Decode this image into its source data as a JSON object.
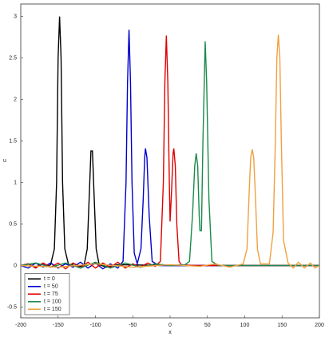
{
  "chart_data": {
    "type": "line",
    "xlabel": "x",
    "ylabel": "u",
    "xlim": [
      -200,
      200
    ],
    "ylim": [
      -0.63,
      3.15
    ],
    "xticks": [
      -200,
      -150,
      -100,
      -50,
      0,
      50,
      100,
      150,
      200
    ],
    "yticks": [
      -0.5,
      0,
      0.5,
      1,
      1.5,
      2,
      2.5,
      3
    ],
    "legend": "lower left",
    "series": [
      {
        "name": "t = 0",
        "color": "#000000",
        "x": [
          -200,
          -190,
          -180,
          -172,
          -165,
          -160,
          -155,
          -152,
          -150,
          -148,
          -146,
          -144,
          -141,
          -136,
          -128,
          -120,
          -115,
          -111,
          -108,
          -106,
          -104,
          -102,
          -99,
          -95,
          -85,
          -70,
          0,
          200
        ],
        "values": [
          0,
          0.02,
          -0.02,
          0.02,
          -0.01,
          0.01,
          0.2,
          1.0,
          2.5,
          3.0,
          2.5,
          1.0,
          0.2,
          0.01,
          0.02,
          -0.01,
          0.01,
          0.2,
          0.9,
          1.38,
          1.38,
          0.9,
          0.2,
          0.01,
          -0.02,
          0.01,
          0,
          0
        ]
      },
      {
        "name": "t = 50",
        "color": "#0000cc",
        "x": [
          -200,
          -190,
          -180,
          -170,
          -160,
          -150,
          -140,
          -130,
          -120,
          -110,
          -100,
          -90,
          -80,
          -70,
          -63,
          -59,
          -57,
          -55,
          -53,
          -51,
          -48,
          -44,
          -39,
          -36,
          -34,
          -33,
          -31,
          -28,
          -24,
          -15,
          0,
          200
        ],
        "values": [
          0,
          -0.03,
          0.03,
          -0.02,
          0.03,
          -0.03,
          0.02,
          -0.02,
          0.04,
          -0.03,
          0.03,
          -0.04,
          0.02,
          -0.03,
          0.05,
          1.0,
          2.2,
          2.84,
          2.2,
          1.0,
          0.15,
          0.02,
          0.2,
          0.8,
          1.3,
          1.41,
          1.3,
          0.6,
          0.05,
          0,
          0,
          0
        ]
      },
      {
        "name": "t = 75",
        "color": "#e00000",
        "x": [
          -200,
          -190,
          -180,
          -170,
          -160,
          -150,
          -140,
          -130,
          -120,
          -110,
          -100,
          -90,
          -80,
          -70,
          -60,
          -50,
          -40,
          -30,
          -20,
          -13,
          -9,
          -7,
          -5,
          -3,
          -1,
          0,
          2,
          4,
          5,
          7,
          9,
          12,
          15,
          30,
          200
        ],
        "values": [
          0,
          0.02,
          -0.03,
          0.03,
          -0.02,
          0.03,
          -0.04,
          0.03,
          -0.03,
          0.04,
          -0.03,
          0.03,
          -0.02,
          0.04,
          -0.03,
          0.02,
          -0.02,
          0.03,
          -0.01,
          0.05,
          1.0,
          2.2,
          2.77,
          2.2,
          1.0,
          0.53,
          0.9,
          1.35,
          1.41,
          1.2,
          0.5,
          0.05,
          0.01,
          0,
          0
        ]
      },
      {
        "name": "t = 100",
        "color": "#1a8a4a",
        "x": [
          -200,
          -180,
          -160,
          -140,
          -120,
          -100,
          -80,
          -60,
          -40,
          -20,
          0,
          20,
          26,
          30,
          33,
          35,
          37,
          39,
          40,
          42,
          44,
          47,
          49,
          52,
          56,
          65,
          200
        ],
        "values": [
          0,
          0.03,
          -0.02,
          0.03,
          -0.03,
          0.04,
          -0.03,
          0.03,
          -0.02,
          0.02,
          0,
          0.01,
          0.05,
          0.6,
          1.2,
          1.35,
          1.2,
          0.6,
          0.42,
          0.42,
          1.5,
          2.7,
          2.2,
          0.8,
          0.05,
          0,
          0
        ]
      },
      {
        "name": "t = 150",
        "color": "#f0a040",
        "x": [
          -200,
          -150,
          -100,
          -50,
          0,
          40,
          60,
          80,
          98,
          103,
          106,
          108,
          110,
          112,
          114,
          117,
          121,
          133,
          138,
          141,
          143,
          145,
          147,
          149,
          152,
          158,
          165,
          172,
          180,
          188,
          194,
          200
        ],
        "values": [
          0,
          -0.02,
          0.02,
          -0.02,
          0.01,
          -0.01,
          0.02,
          -0.02,
          0.02,
          0.2,
          0.9,
          1.3,
          1.4,
          1.3,
          0.9,
          0.2,
          0.02,
          0.02,
          0.4,
          1.5,
          2.5,
          2.78,
          2.5,
          1.5,
          0.3,
          0.03,
          -0.03,
          0.04,
          -0.03,
          0.03,
          -0.03,
          0
        ]
      }
    ]
  }
}
